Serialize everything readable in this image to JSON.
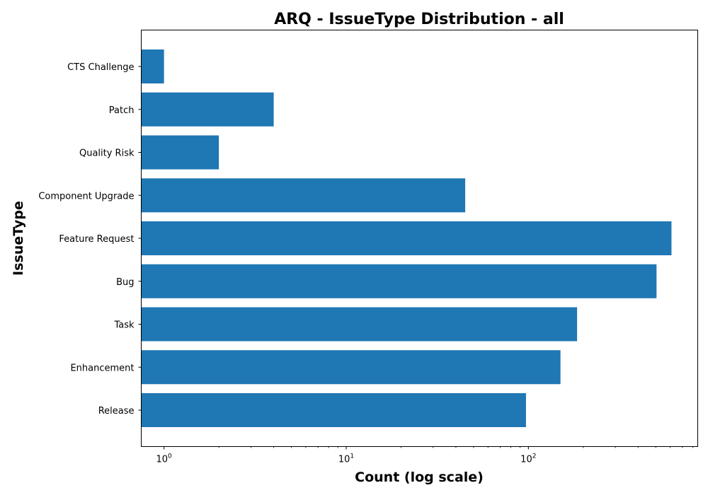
{
  "chart_data": {
    "type": "bar",
    "orientation": "horizontal",
    "title": "ARQ - IssueType Distribution - all",
    "xlabel": "Count (log scale)",
    "ylabel": "IssueType",
    "x_scale": "log",
    "xlim": [
      0.75,
      850
    ],
    "x_ticks": [
      {
        "value": 1,
        "base": "10",
        "exp": "0"
      },
      {
        "value": 10,
        "base": "10",
        "exp": "1"
      },
      {
        "value": 100,
        "base": "10",
        "exp": "2"
      }
    ],
    "categories": [
      "CTS Challenge",
      "Patch",
      "Quality Risk",
      "Component  Upgrade",
      "Feature Request",
      "Bug",
      "Task",
      "Enhancement",
      "Release"
    ],
    "values": [
      1,
      4,
      2,
      45,
      610,
      505,
      185,
      150,
      97
    ],
    "bar_color": "#1f77b4",
    "grid": false,
    "legend": "none"
  }
}
